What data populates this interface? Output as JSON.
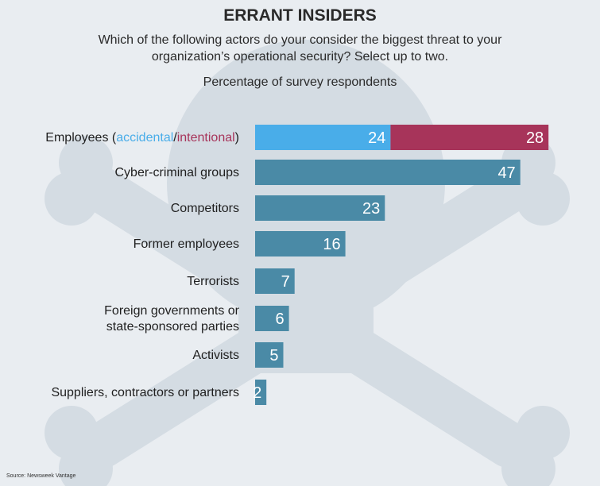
{
  "title": "ERRANT INSIDERS",
  "subtitle": "Which of the following actors do your consider the biggest threat to your organization’s operational security? Select up to two.",
  "unit_label": "Percentage of survey respondents",
  "source": "Source: Newsweek Vantage",
  "colors": {
    "primary": "#4a8aa6",
    "accidental": "#49ade9",
    "intentional": "#a7345a",
    "background": "#e9edf1",
    "watermark": "#d4dce3"
  },
  "chart_data": {
    "type": "bar",
    "orientation": "horizontal",
    "stacked": true,
    "title": "ERRANT INSIDERS",
    "xlabel": "",
    "ylabel": "",
    "xlim": [
      0,
      52
    ],
    "categories": [
      "Employees (accidental/intentional)",
      "Cyber-criminal groups",
      "Competitors",
      "Former employees",
      "Terrorists",
      "Foreign governments or state-sponsored parties",
      "Activists",
      "Suppliers, contractors or partners"
    ],
    "category_lines": [
      [
        {
          "text": "Employees (",
          "style": "plain"
        },
        {
          "text": "accidental",
          "style": "accidental"
        },
        {
          "text": "/",
          "style": "plain"
        },
        {
          "text": "intentional",
          "style": "intentional"
        },
        {
          "text": ")",
          "style": "plain"
        }
      ],
      [
        {
          "text": "Cyber-criminal groups",
          "style": "plain"
        }
      ],
      [
        {
          "text": "Competitors",
          "style": "plain"
        }
      ],
      [
        {
          "text": "Former employees",
          "style": "plain"
        }
      ],
      [
        {
          "text": "Terrorists",
          "style": "plain"
        }
      ],
      [
        {
          "text": "Foreign governments or",
          "style": "plain"
        },
        {
          "text": "state-sponsored parties",
          "style": "plain",
          "newline": true
        }
      ],
      [
        {
          "text": "Activists",
          "style": "plain"
        }
      ],
      [
        {
          "text": "Suppliers, contractors or partners",
          "style": "plain"
        }
      ]
    ],
    "rows": [
      {
        "segments": [
          {
            "value": 24,
            "color": "accidental"
          },
          {
            "value": 28,
            "color": "intentional"
          }
        ]
      },
      {
        "segments": [
          {
            "value": 47,
            "color": "primary"
          }
        ]
      },
      {
        "segments": [
          {
            "value": 23,
            "color": "primary"
          }
        ]
      },
      {
        "segments": [
          {
            "value": 16,
            "color": "primary"
          }
        ]
      },
      {
        "segments": [
          {
            "value": 7,
            "color": "primary"
          }
        ]
      },
      {
        "segments": [
          {
            "value": 6,
            "color": "primary"
          }
        ]
      },
      {
        "segments": [
          {
            "value": 5,
            "color": "primary"
          }
        ]
      },
      {
        "segments": [
          {
            "value": 2,
            "color": "primary"
          }
        ]
      }
    ]
  }
}
